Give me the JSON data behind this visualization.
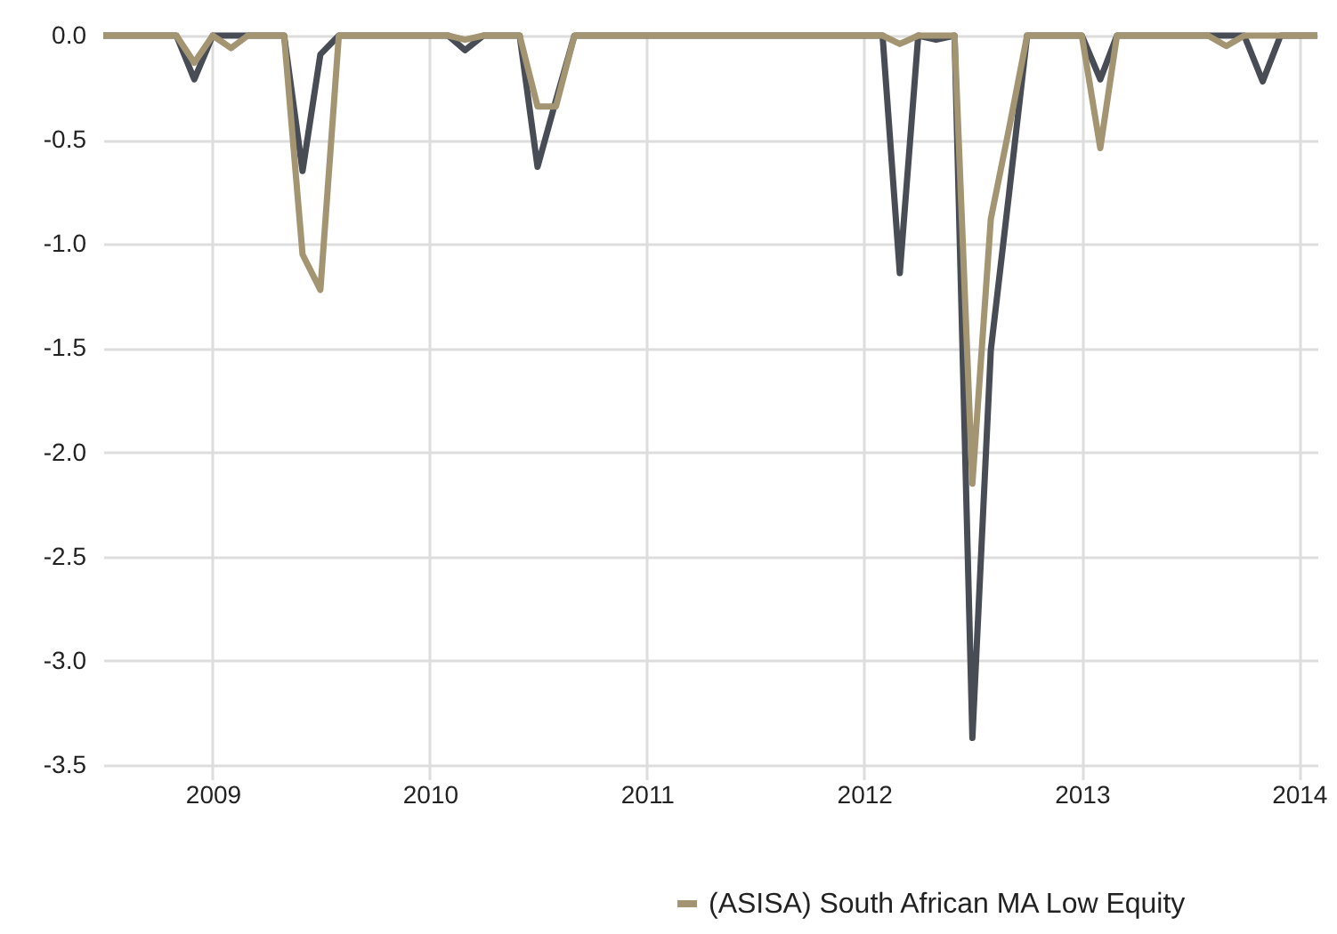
{
  "chart_data": {
    "type": "line",
    "x": [
      "2008-07",
      "2008-08",
      "2008-09",
      "2008-10",
      "2008-11",
      "2008-12",
      "2009-01",
      "2009-02",
      "2009-03",
      "2009-04",
      "2009-05",
      "2009-06",
      "2009-07",
      "2009-08",
      "2009-09",
      "2009-10",
      "2009-11",
      "2009-12",
      "2010-01",
      "2010-02",
      "2010-03",
      "2010-04",
      "2010-05",
      "2010-06",
      "2010-07",
      "2010-08",
      "2010-09",
      "2010-10",
      "2010-11",
      "2010-12",
      "2011-01",
      "2011-02",
      "2011-03",
      "2011-04",
      "2011-05",
      "2011-06",
      "2011-07",
      "2011-08",
      "2011-09",
      "2011-10",
      "2011-11",
      "2011-12",
      "2012-01",
      "2012-02",
      "2012-03",
      "2012-04",
      "2012-05",
      "2012-06",
      "2012-07",
      "2012-08",
      "2012-09",
      "2012-10",
      "2012-11",
      "2012-12",
      "2013-01",
      "2013-02",
      "2013-03",
      "2013-04",
      "2013-05",
      "2013-06",
      "2013-07",
      "2013-08",
      "2013-09",
      "2013-10",
      "2013-11",
      "2013-12",
      "2014-01",
      "2014-02"
    ],
    "series": [
      {
        "color": "#474c55",
        "values": [
          0,
          0,
          0,
          0,
          0,
          -0.21,
          0,
          0,
          0,
          0,
          0,
          -0.65,
          -0.09,
          0,
          0,
          0,
          0,
          0,
          0,
          0,
          -0.07,
          0,
          0,
          0,
          -0.63,
          -0.31,
          0,
          0,
          0,
          0,
          0,
          0,
          0,
          0,
          0,
          0,
          0,
          0,
          0,
          0,
          0,
          0,
          0,
          0,
          -1.14,
          0,
          -0.02,
          0,
          -3.37,
          -1.51,
          -0.75,
          0,
          0,
          0,
          0,
          -0.21,
          0,
          0,
          0,
          0,
          0,
          0,
          0,
          0,
          -0.22,
          0,
          0,
          0
        ]
      },
      {
        "name": "(ASISA) South African MA Low Equity",
        "color": "#a39472",
        "values": [
          0,
          0,
          0,
          0,
          0,
          -0.13,
          0,
          -0.06,
          0,
          0,
          0,
          -1.05,
          -1.22,
          0,
          0,
          0,
          0,
          0,
          0,
          0,
          -0.02,
          0,
          0,
          0,
          -0.34,
          -0.34,
          0,
          0,
          0,
          0,
          0,
          0,
          0,
          0,
          0,
          0,
          0,
          0,
          0,
          0,
          0,
          0,
          0,
          0,
          -0.04,
          0,
          0,
          0,
          -2.15,
          -0.88,
          -0.44,
          0,
          0,
          0,
          0,
          -0.54,
          0,
          0,
          0,
          0,
          0,
          0,
          -0.05,
          0,
          0,
          0,
          0,
          0
        ]
      }
    ],
    "xlim": [
      "2008-07-01",
      "2014-02-01"
    ],
    "xticks": [
      {
        "value": "2009-01-01",
        "label": "2009"
      },
      {
        "value": "2010-01-01",
        "label": "2010"
      },
      {
        "value": "2011-01-01",
        "label": "2011"
      },
      {
        "value": "2012-01-01",
        "label": "2012"
      },
      {
        "value": "2013-01-01",
        "label": "2013"
      },
      {
        "value": "2014-01-01",
        "label": "2014"
      }
    ],
    "ylim": [
      -3.5,
      0
    ],
    "yticks": [
      {
        "value": 0,
        "label": "0.0"
      },
      {
        "value": -0.5,
        "label": "-0.5"
      },
      {
        "value": -1,
        "label": "-1.0"
      },
      {
        "value": -1.5,
        "label": "-1.5"
      },
      {
        "value": -2,
        "label": "-2.0"
      },
      {
        "value": -2.5,
        "label": "-2.5"
      },
      {
        "value": -3,
        "label": "-3.0"
      },
      {
        "value": -3.5,
        "label": "-3.5"
      }
    ],
    "grid": true,
    "legend": "bottom",
    "line_style": "solid",
    "marker": "none"
  }
}
